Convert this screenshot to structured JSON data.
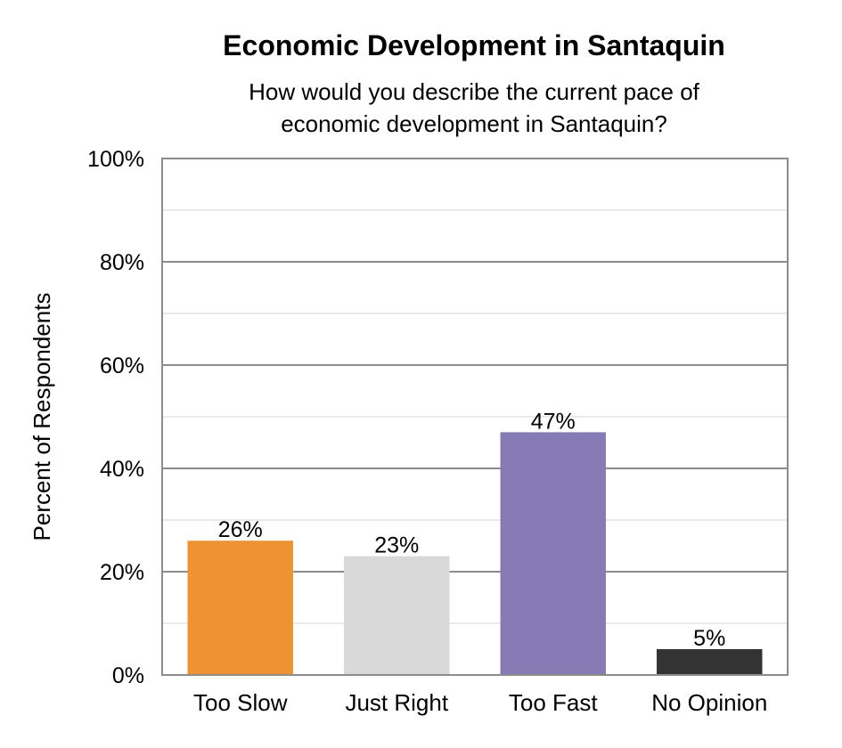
{
  "chart_data": {
    "type": "bar",
    "title": "Economic Development in Santaquin",
    "subtitle_lines": [
      "How would you describe the current pace of",
      "economic development in Santaquin?"
    ],
    "xlabel": "",
    "ylabel": "Percent of Respondents",
    "categories": [
      "Too Slow",
      "Just Right",
      "Too Fast",
      "No Opinion"
    ],
    "values": [
      26,
      23,
      47,
      5
    ],
    "data_labels": [
      "26%",
      "23%",
      "47%",
      "5%"
    ],
    "colors": [
      "#ED9334",
      "#D9D9D9",
      "#877BB5",
      "#333333"
    ],
    "ylim": [
      0,
      100
    ],
    "y_ticks": [
      0,
      20,
      40,
      60,
      80,
      100
    ],
    "y_tick_labels": [
      "0%",
      "20%",
      "40%",
      "60%",
      "80%",
      "100%"
    ],
    "minor_grid_step": 10,
    "grid": true,
    "legend": "none"
  }
}
